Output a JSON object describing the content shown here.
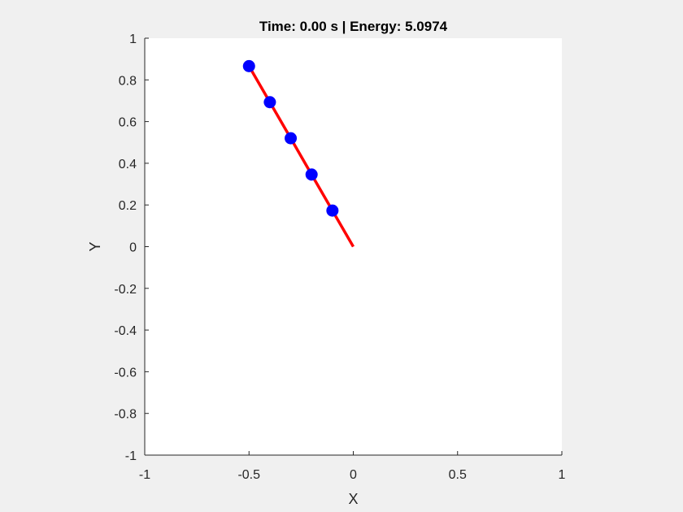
{
  "chart_data": {
    "type": "line",
    "title": "Time: 0.00 s | Energy: 5.0974",
    "xlabel": "X",
    "ylabel": "Y",
    "xlim": [
      -1,
      1
    ],
    "ylim": [
      -1,
      1
    ],
    "x_ticks": [
      "-1",
      "-0.5",
      "0",
      "0.5",
      "1"
    ],
    "y_ticks": [
      "-1",
      "-0.8",
      "-0.6",
      "-0.4",
      "-0.2",
      "0",
      "0.2",
      "0.4",
      "0.6",
      "0.8",
      "1"
    ],
    "grid": false,
    "series": [
      {
        "type": "line",
        "color": "#ff0000",
        "points": [
          {
            "x": 0,
            "y": 0
          },
          {
            "x": -0.1,
            "y": 0.173
          },
          {
            "x": -0.2,
            "y": 0.346
          },
          {
            "x": -0.3,
            "y": 0.52
          },
          {
            "x": -0.4,
            "y": 0.693
          },
          {
            "x": -0.5,
            "y": 0.866
          }
        ]
      },
      {
        "type": "scatter",
        "color": "#0000ff",
        "points": [
          {
            "x": -0.1,
            "y": 0.173
          },
          {
            "x": -0.2,
            "y": 0.346
          },
          {
            "x": -0.3,
            "y": 0.52
          },
          {
            "x": -0.4,
            "y": 0.693
          },
          {
            "x": -0.5,
            "y": 0.866
          }
        ]
      }
    ]
  }
}
